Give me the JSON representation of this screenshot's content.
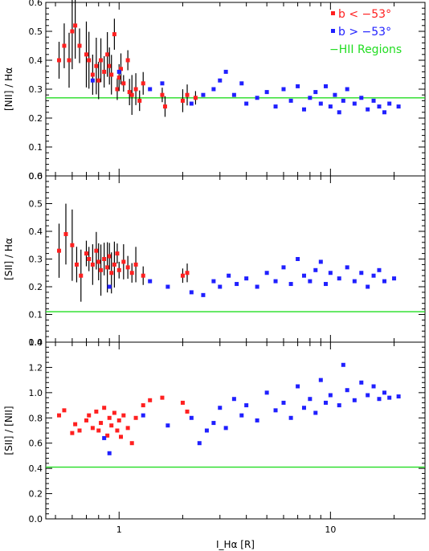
{
  "colors": {
    "red": "#ff2020",
    "blue": "#2020ff",
    "green": "#22dd22",
    "black": "#000000"
  },
  "legend": [
    {
      "label": "b < −53°",
      "color": "#ff2020",
      "marker": "square"
    },
    {
      "label": "b > −53°",
      "color": "#2020ff",
      "marker": "square"
    },
    {
      "label": "−HII Regions",
      "color": "#22dd22",
      "marker": "none"
    }
  ],
  "chart_data": [
    {
      "type": "scatter",
      "title": "",
      "ylabel": "[NII] / Hα",
      "xlabel": "",
      "xscale": "log",
      "xlim": [
        0.45,
        28
      ],
      "ylim": [
        0.0,
        0.6
      ],
      "yticks": [
        "0.0",
        "0.1",
        "0.2",
        "0.3",
        "0.4",
        "0.5",
        "0.6"
      ],
      "reference_line": {
        "name": "HII Regions",
        "y": 0.27,
        "color": "#22dd22"
      },
      "series": [
        {
          "name": "b < −53°",
          "color": "#ff2020",
          "has_errorbars": true,
          "points": [
            [
              0.52,
              0.4
            ],
            [
              0.55,
              0.45
            ],
            [
              0.58,
              0.4
            ],
            [
              0.6,
              0.5
            ],
            [
              0.62,
              0.52
            ],
            [
              0.65,
              0.45
            ],
            [
              0.7,
              0.42
            ],
            [
              0.72,
              0.4
            ],
            [
              0.75,
              0.35
            ],
            [
              0.78,
              0.38
            ],
            [
              0.8,
              0.33
            ],
            [
              0.82,
              0.4
            ],
            [
              0.85,
              0.36
            ],
            [
              0.88,
              0.42
            ],
            [
              0.9,
              0.38
            ],
            [
              0.92,
              0.35
            ],
            [
              0.95,
              0.49
            ],
            [
              0.98,
              0.3
            ],
            [
              1.0,
              0.34
            ],
            [
              1.02,
              0.37
            ],
            [
              1.05,
              0.32
            ],
            [
              1.1,
              0.4
            ],
            [
              1.12,
              0.29
            ],
            [
              1.15,
              0.28
            ],
            [
              1.2,
              0.3
            ],
            [
              1.25,
              0.26
            ],
            [
              1.3,
              0.32
            ],
            [
              1.6,
              0.28
            ],
            [
              1.65,
              0.24
            ],
            [
              2.0,
              0.26
            ],
            [
              2.1,
              0.28
            ],
            [
              2.3,
              0.27
            ]
          ]
        },
        {
          "name": "b > −53°",
          "color": "#2020ff",
          "has_errorbars": false,
          "points": [
            [
              0.75,
              0.33
            ],
            [
              1.0,
              0.36
            ],
            [
              1.4,
              0.3
            ],
            [
              1.6,
              0.32
            ],
            [
              2.2,
              0.25
            ],
            [
              2.5,
              0.28
            ],
            [
              2.8,
              0.3
            ],
            [
              3.0,
              0.33
            ],
            [
              3.2,
              0.36
            ],
            [
              3.5,
              0.28
            ],
            [
              3.8,
              0.32
            ],
            [
              4.0,
              0.25
            ],
            [
              4.5,
              0.27
            ],
            [
              5.0,
              0.29
            ],
            [
              5.5,
              0.24
            ],
            [
              6.0,
              0.3
            ],
            [
              6.5,
              0.26
            ],
            [
              7.0,
              0.31
            ],
            [
              7.5,
              0.23
            ],
            [
              8.0,
              0.27
            ],
            [
              8.5,
              0.29
            ],
            [
              9.0,
              0.25
            ],
            [
              9.5,
              0.31
            ],
            [
              10.0,
              0.24
            ],
            [
              10.5,
              0.28
            ],
            [
              11.0,
              0.22
            ],
            [
              11.5,
              0.26
            ],
            [
              12.0,
              0.3
            ],
            [
              13.0,
              0.25
            ],
            [
              14.0,
              0.27
            ],
            [
              15.0,
              0.23
            ],
            [
              16.0,
              0.26
            ],
            [
              17.0,
              0.24
            ],
            [
              18.0,
              0.22
            ],
            [
              19.0,
              0.25
            ],
            [
              21.0,
              0.24
            ]
          ]
        }
      ]
    },
    {
      "type": "scatter",
      "title": "",
      "ylabel": "[SII] / Hα",
      "xlabel": "",
      "xscale": "log",
      "xlim": [
        0.45,
        28
      ],
      "ylim": [
        0.0,
        0.6
      ],
      "yticks": [
        "0.0",
        "0.1",
        "0.2",
        "0.3",
        "0.4",
        "0.5",
        "0.6"
      ],
      "reference_line": {
        "name": "HII Regions",
        "y": 0.11,
        "color": "#22dd22"
      },
      "series": [
        {
          "name": "b < −53°",
          "color": "#ff2020",
          "has_errorbars": true,
          "points": [
            [
              0.52,
              0.33
            ],
            [
              0.56,
              0.39
            ],
            [
              0.6,
              0.35
            ],
            [
              0.63,
              0.28
            ],
            [
              0.66,
              0.24
            ],
            [
              0.7,
              0.32
            ],
            [
              0.72,
              0.3
            ],
            [
              0.75,
              0.28
            ],
            [
              0.78,
              0.33
            ],
            [
              0.8,
              0.29
            ],
            [
              0.82,
              0.26
            ],
            [
              0.85,
              0.3
            ],
            [
              0.88,
              0.27
            ],
            [
              0.9,
              0.31
            ],
            [
              0.92,
              0.25
            ],
            [
              0.95,
              0.28
            ],
            [
              0.98,
              0.32
            ],
            [
              1.0,
              0.26
            ],
            [
              1.05,
              0.29
            ],
            [
              1.1,
              0.27
            ],
            [
              1.15,
              0.25
            ],
            [
              1.2,
              0.28
            ],
            [
              1.3,
              0.24
            ],
            [
              2.0,
              0.24
            ],
            [
              2.1,
              0.25
            ]
          ]
        },
        {
          "name": "b > −53°",
          "color": "#2020ff",
          "has_errorbars": false,
          "points": [
            [
              0.9,
              0.2
            ],
            [
              1.4,
              0.22
            ],
            [
              1.7,
              0.2
            ],
            [
              2.2,
              0.18
            ],
            [
              2.5,
              0.17
            ],
            [
              2.8,
              0.22
            ],
            [
              3.0,
              0.2
            ],
            [
              3.3,
              0.24
            ],
            [
              3.6,
              0.21
            ],
            [
              4.0,
              0.23
            ],
            [
              4.5,
              0.2
            ],
            [
              5.0,
              0.25
            ],
            [
              5.5,
              0.22
            ],
            [
              6.0,
              0.27
            ],
            [
              6.5,
              0.21
            ],
            [
              7.0,
              0.3
            ],
            [
              7.5,
              0.24
            ],
            [
              8.0,
              0.22
            ],
            [
              8.5,
              0.26
            ],
            [
              9.0,
              0.29
            ],
            [
              9.5,
              0.21
            ],
            [
              10.0,
              0.25
            ],
            [
              11.0,
              0.23
            ],
            [
              12.0,
              0.27
            ],
            [
              13.0,
              0.22
            ],
            [
              14.0,
              0.25
            ],
            [
              15.0,
              0.2
            ],
            [
              16.0,
              0.24
            ],
            [
              17.0,
              0.26
            ],
            [
              18.0,
              0.22
            ],
            [
              20.0,
              0.23
            ]
          ]
        }
      ]
    },
    {
      "type": "scatter",
      "title": "",
      "ylabel": "[SII] / [NII]",
      "xlabel": "I_Hα [R]",
      "xscale": "log",
      "xlim": [
        0.45,
        28
      ],
      "ylim": [
        0.0,
        1.4
      ],
      "yticks": [
        "0.0",
        "0.2",
        "0.4",
        "0.6",
        "0.8",
        "1.0",
        "1.2",
        "1.4"
      ],
      "xticks": [
        {
          "value": 1,
          "label": "1"
        },
        {
          "value": 10,
          "label": "10"
        }
      ],
      "reference_line": {
        "name": "HII Regions",
        "y": 0.41,
        "color": "#22dd22"
      },
      "series": [
        {
          "name": "b < −53°",
          "color": "#ff2020",
          "has_errorbars": false,
          "points": [
            [
              0.52,
              0.82
            ],
            [
              0.55,
              0.86
            ],
            [
              0.6,
              0.68
            ],
            [
              0.62,
              0.75
            ],
            [
              0.65,
              0.7
            ],
            [
              0.7,
              0.78
            ],
            [
              0.72,
              0.82
            ],
            [
              0.75,
              0.72
            ],
            [
              0.78,
              0.85
            ],
            [
              0.8,
              0.7
            ],
            [
              0.82,
              0.76
            ],
            [
              0.85,
              0.88
            ],
            [
              0.88,
              0.66
            ],
            [
              0.9,
              0.8
            ],
            [
              0.92,
              0.74
            ],
            [
              0.95,
              0.84
            ],
            [
              0.98,
              0.7
            ],
            [
              1.0,
              0.78
            ],
            [
              1.02,
              0.65
            ],
            [
              1.05,
              0.82
            ],
            [
              1.1,
              0.72
            ],
            [
              1.15,
              0.6
            ],
            [
              1.2,
              0.8
            ],
            [
              1.3,
              0.9
            ],
            [
              1.4,
              0.94
            ],
            [
              1.6,
              0.96
            ],
            [
              2.0,
              0.92
            ],
            [
              2.1,
              0.85
            ]
          ]
        },
        {
          "name": "b > −53°",
          "color": "#2020ff",
          "has_errorbars": false,
          "points": [
            [
              0.85,
              0.64
            ],
            [
              0.9,
              0.52
            ],
            [
              1.3,
              0.82
            ],
            [
              1.7,
              0.74
            ],
            [
              2.2,
              0.8
            ],
            [
              2.4,
              0.6
            ],
            [
              2.6,
              0.7
            ],
            [
              2.8,
              0.76
            ],
            [
              3.0,
              0.88
            ],
            [
              3.2,
              0.72
            ],
            [
              3.5,
              0.95
            ],
            [
              3.8,
              0.82
            ],
            [
              4.0,
              0.9
            ],
            [
              4.5,
              0.78
            ],
            [
              5.0,
              1.0
            ],
            [
              5.5,
              0.86
            ],
            [
              6.0,
              0.92
            ],
            [
              6.5,
              0.8
            ],
            [
              7.0,
              1.05
            ],
            [
              7.5,
              0.88
            ],
            [
              8.0,
              0.95
            ],
            [
              8.5,
              0.84
            ],
            [
              9.0,
              1.1
            ],
            [
              9.5,
              0.92
            ],
            [
              10.0,
              0.98
            ],
            [
              11.0,
              0.9
            ],
            [
              11.5,
              1.22
            ],
            [
              12.0,
              1.02
            ],
            [
              13.0,
              0.94
            ],
            [
              14.0,
              1.08
            ],
            [
              15.0,
              0.98
            ],
            [
              16.0,
              1.05
            ],
            [
              17.0,
              0.95
            ],
            [
              18.0,
              1.0
            ],
            [
              19.0,
              0.96
            ],
            [
              21.0,
              0.97
            ]
          ]
        }
      ]
    }
  ]
}
